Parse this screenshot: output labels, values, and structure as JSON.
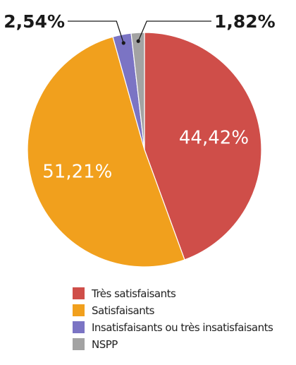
{
  "chart_data": {
    "type": "pie",
    "title": "",
    "categories": [
      "Très satisfaisants",
      "Satisfaisants",
      "Insatisfaisants ou très insatisfaisants",
      "NSPP"
    ],
    "values": [
      44.42,
      51.21,
      2.54,
      1.82
    ],
    "data_labels": [
      "44,42%",
      "51,21%",
      "2,54%",
      "1,82%"
    ],
    "colors": [
      "#cf4e49",
      "#f1a01d",
      "#7b74c4",
      "#a3a3a3"
    ],
    "start_angle_deg": 0,
    "direction": "clockwise",
    "legend": "bottom"
  }
}
